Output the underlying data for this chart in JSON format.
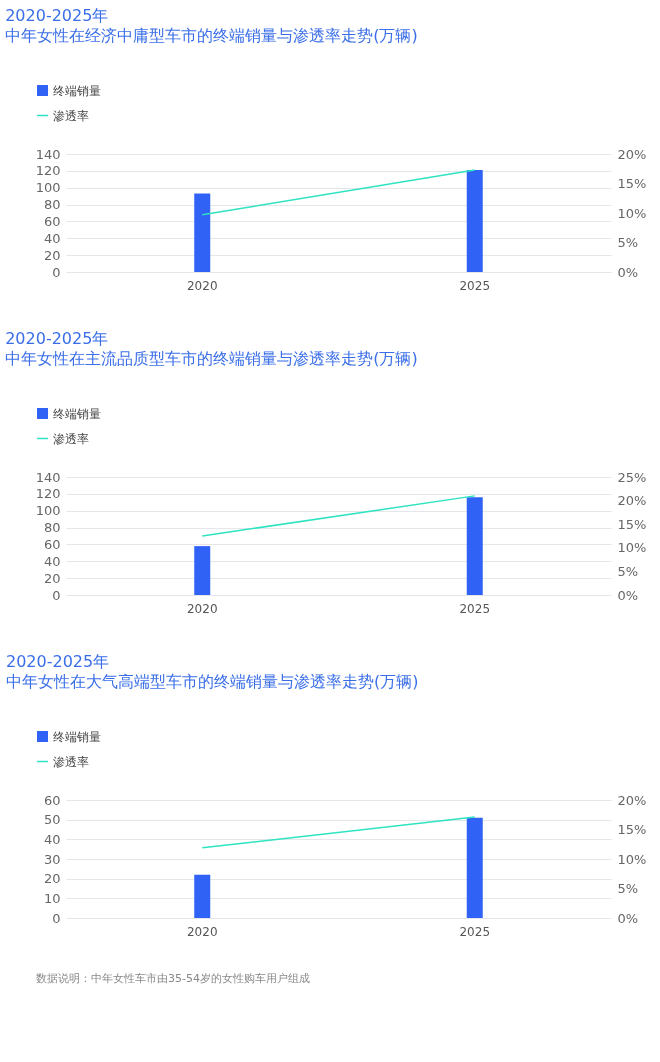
{
  "chart_data": [
    {
      "type": "bar",
      "title": "2020-2025年",
      "subtitle": "中年女性在经济中庸型车市的终端销量与渗透率走势(万辆)",
      "categories": [
        "2020",
        "2025"
      ],
      "series": [
        {
          "name": "终端销量",
          "type": "bar",
          "color": "#2f62f5",
          "values": [
            93,
            121
          ]
        },
        {
          "name": "渗透率",
          "type": "line",
          "axis": "y2",
          "color": "#2ee3c0",
          "values": [
            9.7,
            17.3
          ]
        }
      ],
      "ylim": [
        0,
        140
      ],
      "yticks": [
        0,
        20,
        40,
        60,
        80,
        100,
        120,
        140
      ],
      "y2lim": [
        0,
        20
      ],
      "y2ticks": [
        {
          "value": 0,
          "label": "0%"
        },
        {
          "value": 5,
          "label": "5%"
        },
        {
          "value": 10,
          "label": "10%"
        },
        {
          "value": 15,
          "label": "15%"
        },
        {
          "value": 20,
          "label": "20%"
        }
      ],
      "grid": "y",
      "legend": "top left"
    },
    {
      "type": "bar",
      "title": "2020-2025年",
      "subtitle": "中年女性在主流品质型车市的终端销量与渗透率走势(万辆)",
      "categories": [
        "2020",
        "2025"
      ],
      "series": [
        {
          "name": "终端销量",
          "type": "bar",
          "color": "#2f62f5",
          "values": [
            58,
            116
          ]
        },
        {
          "name": "渗透率",
          "type": "line",
          "axis": "y2",
          "color": "#2ee3c0",
          "values": [
            12.5,
            21.0
          ]
        }
      ],
      "ylim": [
        0,
        140
      ],
      "yticks": [
        0,
        20,
        40,
        60,
        80,
        100,
        120,
        140
      ],
      "y2lim": [
        0,
        25
      ],
      "y2ticks": [
        {
          "value": 0,
          "label": "0%"
        },
        {
          "value": 5,
          "label": "5%"
        },
        {
          "value": 10,
          "label": "10%"
        },
        {
          "value": 15,
          "label": "15%"
        },
        {
          "value": 20,
          "label": "20%"
        },
        {
          "value": 25,
          "label": "25%"
        }
      ],
      "grid": "y",
      "legend": "top left"
    },
    {
      "type": "bar",
      "title": "2020-2025年",
      "subtitle": "中年女性在大气高端型车市的终端销量与渗透率走势(万辆)",
      "categories": [
        "2020",
        "2025"
      ],
      "series": [
        {
          "name": "终端销量",
          "type": "bar",
          "color": "#2f62f5",
          "values": [
            22,
            51
          ]
        },
        {
          "name": "渗透率",
          "type": "line",
          "axis": "y2",
          "color": "#2ee3c0",
          "values": [
            11.9,
            17.1
          ]
        }
      ],
      "ylim": [
        0,
        60
      ],
      "yticks": [
        0,
        10,
        20,
        30,
        40,
        50,
        60
      ],
      "y2lim": [
        0,
        20
      ],
      "y2ticks": [
        {
          "value": 0,
          "label": "0%"
        },
        {
          "value": 5,
          "label": "5%"
        },
        {
          "value": 10,
          "label": "10%"
        },
        {
          "value": 15,
          "label": "15%"
        },
        {
          "value": 20,
          "label": "20%"
        }
      ],
      "grid": "y",
      "legend": "top left",
      "annotations": [
        "数据说明：中年女性车市由35-54岁的女性购车用户组成"
      ]
    }
  ]
}
